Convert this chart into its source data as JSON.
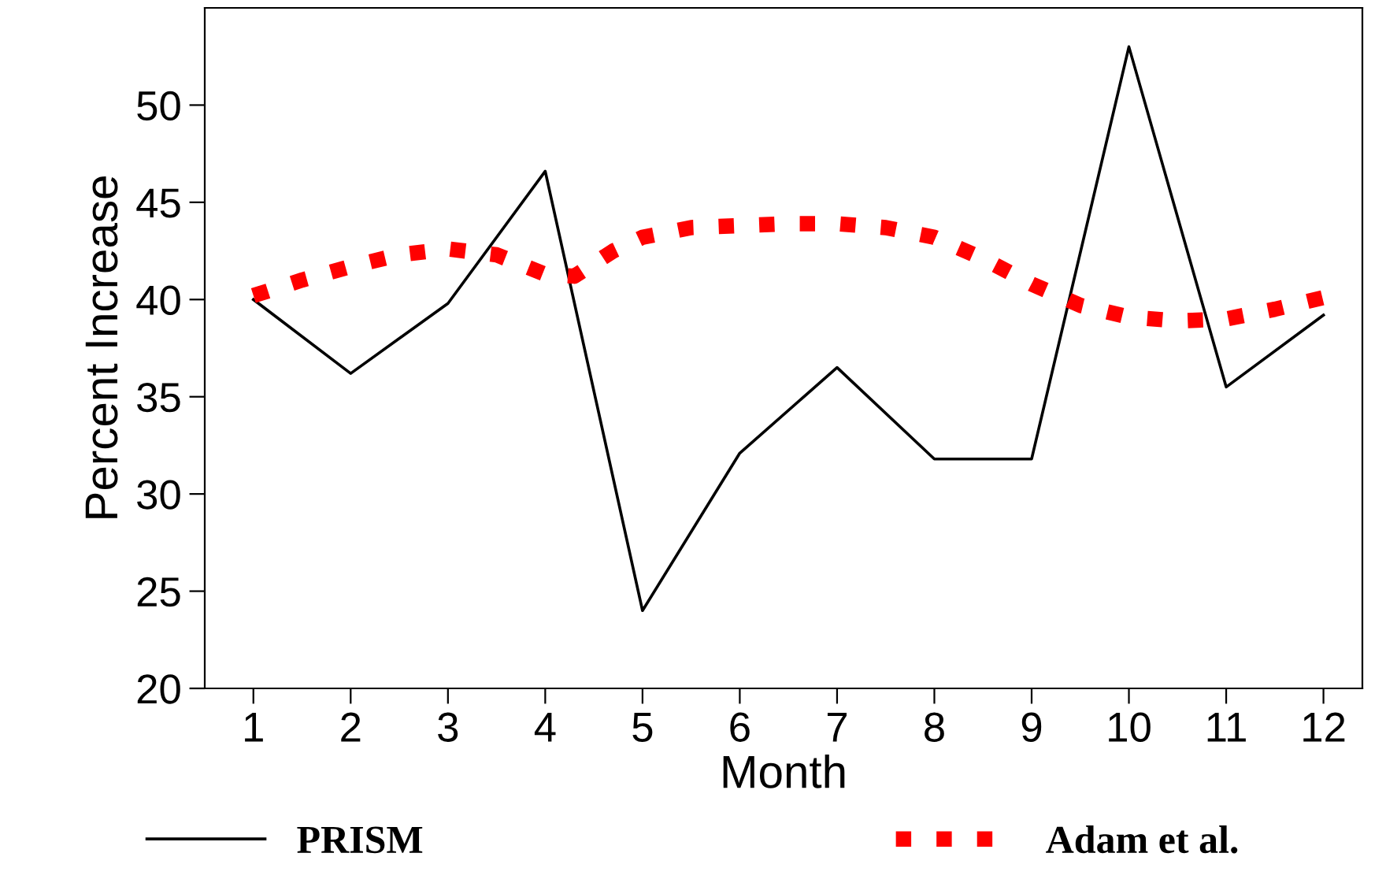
{
  "chart_data": {
    "type": "line",
    "xlabel": "Month",
    "ylabel": "Percent Increase",
    "xlim": [
      0.5,
      12.4
    ],
    "xticks": [
      1,
      2,
      3,
      4,
      5,
      6,
      7,
      8,
      9,
      10,
      11,
      12
    ],
    "ylim": [
      20,
      55
    ],
    "yticks": [
      20,
      25,
      30,
      35,
      40,
      45,
      50
    ],
    "grid": false,
    "legend": "bottom",
    "marker": "none",
    "series": [
      {
        "name": "PRISM",
        "color": "#000000",
        "line_style": "solid",
        "x": [
          1,
          2,
          3,
          4,
          5,
          6,
          7,
          8,
          9,
          10,
          11,
          12
        ],
        "values": [
          40,
          36.2,
          39.8,
          46.6,
          24,
          32.1,
          36.5,
          31.8,
          31.8,
          53,
          35.5,
          39.2
        ]
      },
      {
        "name": "Adam et al.",
        "color": "#ff0000",
        "line_style": "dotted",
        "x": [
          1,
          1.5,
          2,
          2.5,
          3,
          3.5,
          4,
          4.3,
          4.7,
          5,
          5.5,
          6,
          6.5,
          7,
          7.5,
          8,
          8.5,
          9,
          9.5,
          10,
          10.5,
          11,
          11.5,
          12
        ],
        "values": [
          40.2,
          41,
          41.7,
          42.3,
          42.6,
          42.3,
          41.3,
          41.2,
          42.5,
          43.2,
          43.7,
          43.8,
          43.9,
          43.9,
          43.7,
          43.2,
          42.1,
          40.8,
          39.7,
          39.1,
          38.9,
          39,
          39.5,
          40.1
        ]
      }
    ]
  }
}
